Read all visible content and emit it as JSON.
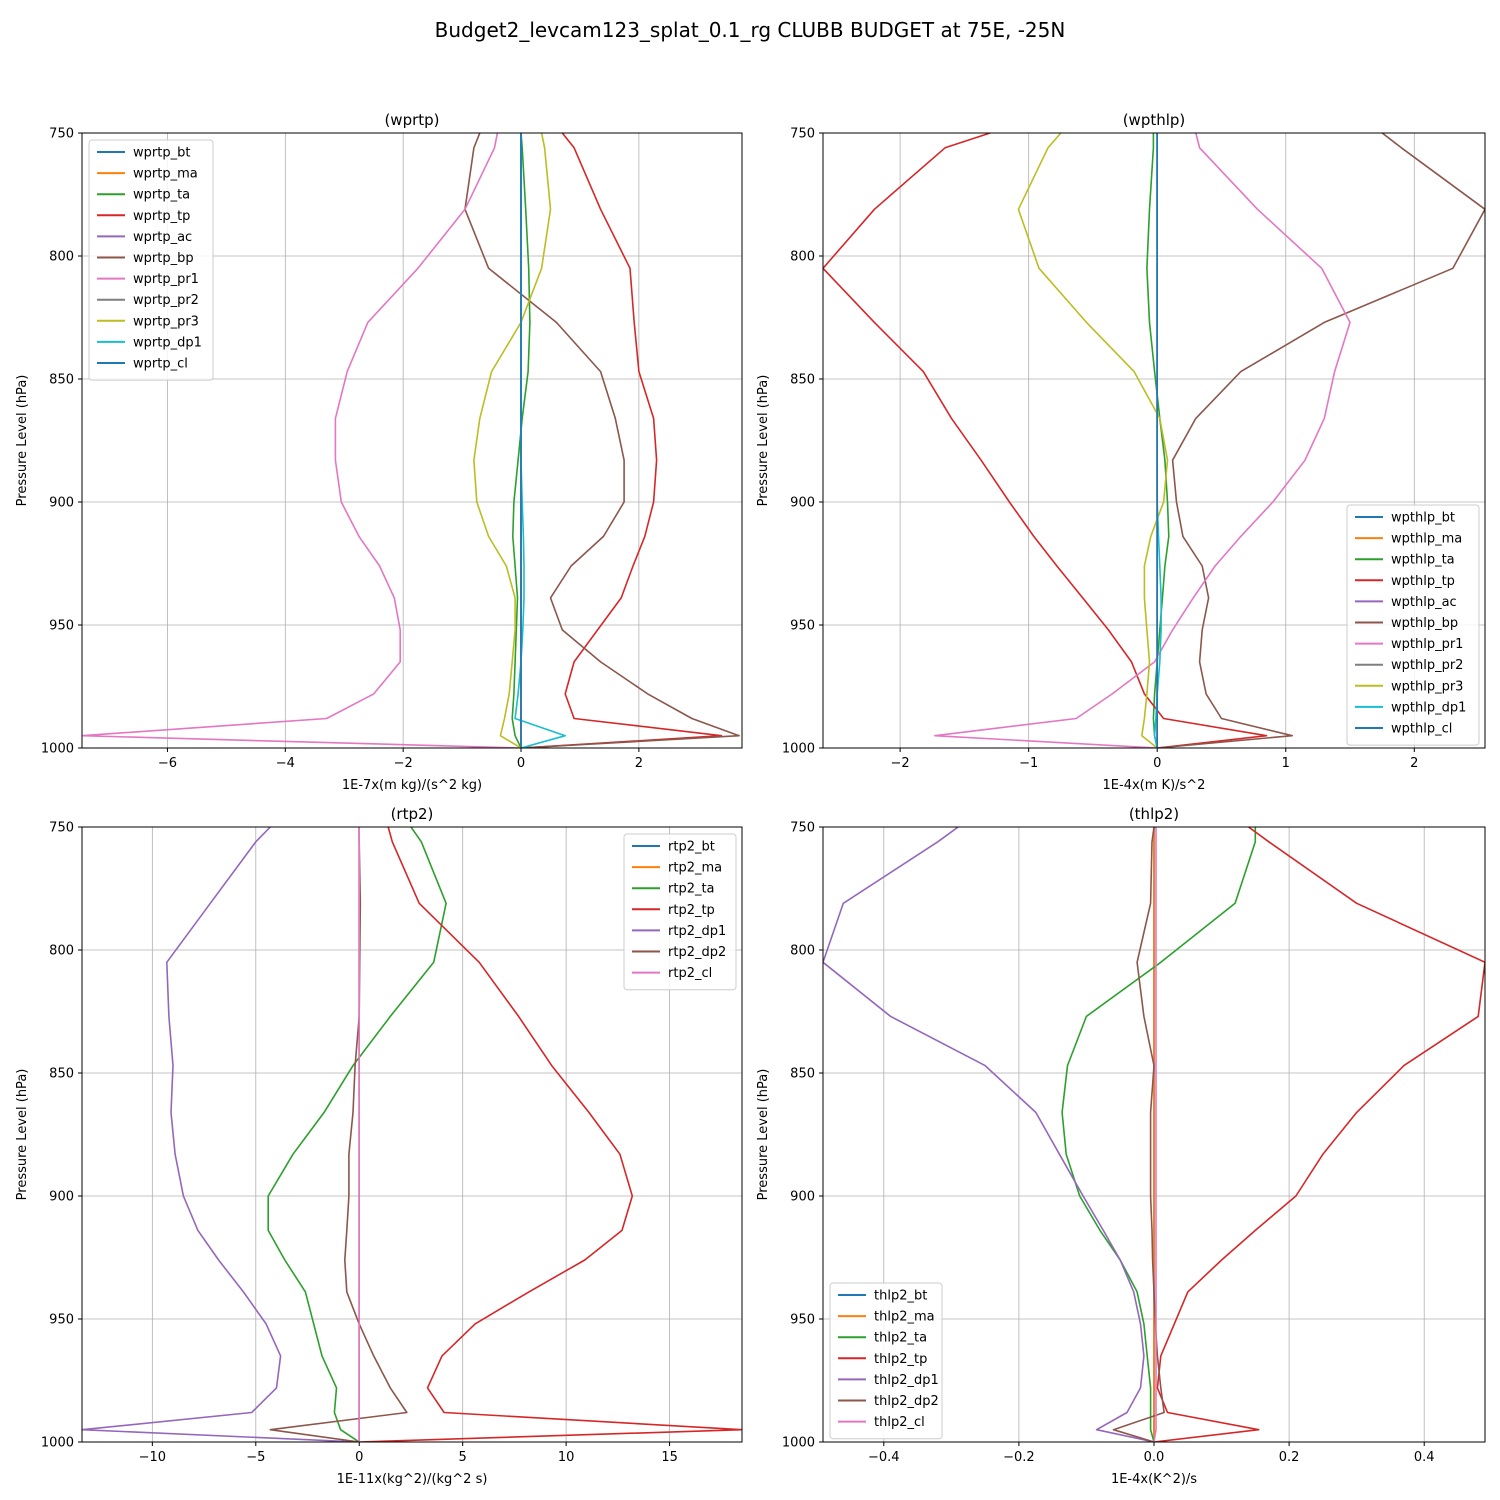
{
  "figure_title": "Budget2_levcam123_splat_0.1_rg CLUBB BUDGET at 75E, -25N",
  "colors": [
    "#1f77b4",
    "#ff7f0e",
    "#2ca02c",
    "#d62728",
    "#9467bd",
    "#8c564b",
    "#e377c2",
    "#7f7f7f",
    "#bcbd22",
    "#17becf",
    "#1f77b4"
  ],
  "chart_data": [
    {
      "type": "line",
      "title": "(wprtp)",
      "xlabel": "1E-7x(m kg)/(s^2 kg)",
      "ylabel": "Pressure Level (hPa)",
      "xlim": [
        -7.45,
        3.75
      ],
      "ylim": [
        1000,
        750
      ],
      "xticks": [
        -6,
        -4,
        -2,
        0,
        2
      ],
      "xtick_labels": [
        "−6",
        "−4",
        "−2",
        "0",
        "2"
      ],
      "yticks": [
        750,
        800,
        850,
        900,
        950,
        1000
      ],
      "grid": true,
      "legend": "upper-left",
      "levels": [
        750,
        756,
        781,
        805,
        827,
        847,
        866,
        883,
        900,
        914,
        926,
        939,
        952,
        965,
        978,
        988,
        995,
        1000
      ],
      "series": [
        {
          "name": "wprtp_bt",
          "values": [
            0,
            0,
            0,
            0,
            0,
            0,
            0,
            0,
            0,
            0,
            0,
            0,
            0,
            0,
            0,
            0,
            0,
            0
          ]
        },
        {
          "name": "wprtp_ma",
          "values": [
            0,
            0,
            0,
            0,
            0,
            0,
            0,
            0,
            0,
            0,
            0,
            0,
            0,
            0,
            0,
            0,
            0,
            0
          ]
        },
        {
          "name": "wprtp_ta",
          "values": [
            0,
            0.02,
            0.08,
            0.13,
            0.15,
            0.12,
            0.02,
            -0.05,
            -0.12,
            -0.14,
            -0.1,
            -0.06,
            -0.08,
            -0.1,
            -0.12,
            -0.15,
            -0.1,
            0
          ]
        },
        {
          "name": "wprtp_tp",
          "values": [
            0.7,
            0.9,
            1.35,
            1.85,
            1.92,
            2.0,
            2.25,
            2.3,
            2.25,
            2.1,
            1.9,
            1.7,
            1.3,
            0.9,
            0.75,
            0.9,
            3.4,
            0
          ]
        },
        {
          "name": "wprtp_ac",
          "values": [
            0,
            0,
            0,
            0,
            0,
            0,
            0,
            0,
            0,
            0,
            0,
            0,
            0,
            0,
            0,
            0,
            0,
            0
          ]
        },
        {
          "name": "wprtp_bp",
          "values": [
            -0.7,
            -0.8,
            -0.95,
            -0.55,
            0.6,
            1.35,
            1.6,
            1.75,
            1.75,
            1.4,
            0.85,
            0.5,
            0.7,
            1.35,
            2.15,
            2.9,
            3.7,
            0
          ]
        },
        {
          "name": "wprtp_pr1",
          "values": [
            -0.4,
            -0.45,
            -0.95,
            -1.75,
            -2.6,
            -2.95,
            -3.15,
            -3.15,
            -3.05,
            -2.75,
            -2.4,
            -2.15,
            -2.05,
            -2.05,
            -2.5,
            -3.3,
            -7.45,
            0
          ]
        },
        {
          "name": "wprtp_pr2",
          "values": [
            0,
            0,
            0,
            0,
            0,
            0,
            0,
            0,
            0,
            0,
            0,
            0,
            0,
            0,
            0,
            0,
            0,
            0
          ]
        },
        {
          "name": "wprtp_pr3",
          "values": [
            0.35,
            0.4,
            0.5,
            0.35,
            0.0,
            -0.5,
            -0.7,
            -0.8,
            -0.75,
            -0.55,
            -0.25,
            -0.1,
            -0.1,
            -0.15,
            -0.2,
            -0.28,
            -0.35,
            0
          ]
        },
        {
          "name": "wprtp_dp1",
          "values": [
            0,
            0,
            0,
            0,
            0,
            0,
            0,
            0,
            0.02,
            0.04,
            0.05,
            0.05,
            0.03,
            0.0,
            -0.05,
            -0.1,
            0.75,
            0
          ]
        },
        {
          "name": "wprtp_cl",
          "values": [
            0,
            0,
            0,
            0,
            0,
            0,
            0,
            0,
            0,
            0,
            0,
            0,
            0,
            0,
            0,
            0,
            0,
            0
          ]
        }
      ]
    },
    {
      "type": "line",
      "title": "(wpthlp)",
      "xlabel": "1E-4x(m K)/s^2",
      "ylabel": "Pressure Level (hPa)",
      "xlim": [
        -2.6,
        2.55
      ],
      "ylim": [
        1000,
        750
      ],
      "xticks": [
        -2,
        -1,
        0,
        1,
        2
      ],
      "xtick_labels": [
        "−2",
        "−1",
        "0",
        "1",
        "2"
      ],
      "yticks": [
        750,
        800,
        850,
        900,
        950,
        1000
      ],
      "grid": true,
      "legend": "lower-right",
      "levels": [
        750,
        756,
        781,
        805,
        827,
        847,
        866,
        883,
        900,
        914,
        926,
        939,
        952,
        965,
        978,
        988,
        995,
        1000
      ],
      "series": [
        {
          "name": "wpthlp_bt",
          "values": [
            0,
            0,
            0,
            0,
            0,
            0,
            0,
            0,
            0,
            0,
            0,
            0,
            0,
            0,
            0,
            0,
            0,
            0
          ]
        },
        {
          "name": "wpthlp_ma",
          "values": [
            0,
            0,
            0,
            0,
            0,
            0,
            0,
            0,
            0,
            0,
            0,
            0,
            0,
            0,
            0,
            0,
            0,
            0
          ]
        },
        {
          "name": "wpthlp_ta",
          "values": [
            -0.03,
            -0.03,
            -0.06,
            -0.08,
            -0.06,
            -0.02,
            0.02,
            0.06,
            0.08,
            0.09,
            0.06,
            0.04,
            0.02,
            0.0,
            -0.02,
            -0.03,
            -0.02,
            0
          ]
        },
        {
          "name": "wpthlp_tp",
          "values": [
            -1.3,
            -1.65,
            -2.2,
            -2.6,
            -2.2,
            -1.82,
            -1.6,
            -1.37,
            -1.15,
            -0.96,
            -0.78,
            -0.58,
            -0.38,
            -0.2,
            -0.1,
            0.05,
            0.85,
            0
          ]
        },
        {
          "name": "wpthlp_ac",
          "values": [
            0,
            0,
            0,
            0,
            0,
            0,
            0,
            0,
            0,
            0,
            0,
            0,
            0,
            0,
            0,
            0,
            0,
            0
          ]
        },
        {
          "name": "wpthlp_bp",
          "values": [
            1.75,
            1.9,
            2.55,
            2.3,
            1.3,
            0.65,
            0.3,
            0.12,
            0.15,
            0.2,
            0.35,
            0.4,
            0.35,
            0.33,
            0.38,
            0.5,
            1.05,
            0
          ]
        },
        {
          "name": "wpthlp_pr1",
          "values": [
            0.3,
            0.33,
            0.78,
            1.28,
            1.5,
            1.38,
            1.3,
            1.15,
            0.9,
            0.65,
            0.45,
            0.28,
            0.12,
            -0.02,
            -0.35,
            -0.63,
            -1.73,
            0
          ]
        },
        {
          "name": "wpthlp_pr2",
          "values": [
            0,
            0,
            0,
            0,
            0,
            0,
            0,
            0,
            0,
            0,
            0,
            0,
            0,
            0,
            0,
            0,
            0,
            0
          ]
        },
        {
          "name": "wpthlp_pr3",
          "values": [
            -0.75,
            -0.85,
            -1.08,
            -0.92,
            -0.55,
            -0.18,
            0.02,
            0.08,
            0.05,
            -0.05,
            -0.1,
            -0.1,
            -0.08,
            -0.06,
            -0.08,
            -0.1,
            -0.12,
            0
          ]
        },
        {
          "name": "wpthlp_dp1",
          "values": [
            0,
            0,
            0,
            0,
            0,
            0,
            0,
            0,
            0,
            0.01,
            0.02,
            0.03,
            0.03,
            0.02,
            0.0,
            -0.01,
            -0.02,
            0
          ]
        },
        {
          "name": "wpthlp_cl",
          "values": [
            0,
            0,
            0,
            0,
            0,
            0,
            0,
            0,
            0,
            0,
            0,
            0,
            0,
            0,
            0,
            0,
            0,
            0
          ]
        }
      ]
    },
    {
      "type": "line",
      "title": "(rtp2)",
      "xlabel": "1E-11x(kg^2)/(kg^2 s)",
      "ylabel": "Pressure Level (hPa)",
      "xlim": [
        -13.4,
        18.5
      ],
      "ylim": [
        1000,
        750
      ],
      "xticks": [
        -10,
        -5,
        0,
        5,
        10,
        15
      ],
      "xtick_labels": [
        "−10",
        "−5",
        "0",
        "5",
        "10",
        "15"
      ],
      "yticks": [
        750,
        800,
        850,
        900,
        950,
        1000
      ],
      "grid": true,
      "legend": "upper-right",
      "levels": [
        750,
        756,
        781,
        805,
        827,
        847,
        866,
        883,
        900,
        914,
        926,
        939,
        952,
        965,
        978,
        988,
        995,
        1000
      ],
      "series": [
        {
          "name": "rtp2_bt",
          "values": [
            0,
            0,
            0,
            0,
            0,
            0,
            0,
            0,
            0,
            0,
            0,
            0,
            0,
            0,
            0,
            0,
            0,
            0
          ]
        },
        {
          "name": "rtp2_ma",
          "values": [
            0,
            0,
            0,
            0,
            0,
            0,
            0,
            0,
            0,
            0,
            0,
            0,
            0,
            0,
            0,
            0,
            0,
            0
          ]
        },
        {
          "name": "rtp2_ta",
          "values": [
            2.5,
            3.0,
            4.2,
            3.6,
            1.5,
            -0.3,
            -1.7,
            -3.2,
            -4.4,
            -4.4,
            -3.6,
            -2.6,
            -2.2,
            -1.8,
            -1.1,
            -1.2,
            -0.9,
            0
          ]
        },
        {
          "name": "rtp2_tp",
          "values": [
            1.4,
            1.6,
            2.9,
            5.8,
            7.7,
            9.3,
            11.1,
            12.6,
            13.2,
            12.7,
            10.9,
            8.2,
            5.6,
            4.0,
            3.3,
            4.1,
            18.5,
            0
          ]
        },
        {
          "name": "rtp2_dp1",
          "values": [
            -4.3,
            -5.0,
            -7.2,
            -9.3,
            -9.2,
            -9.0,
            -9.1,
            -8.9,
            -8.5,
            -7.8,
            -6.8,
            -5.6,
            -4.5,
            -3.8,
            -4.0,
            -5.2,
            -13.4,
            0
          ]
        },
        {
          "name": "rtp2_dp2",
          "values": [
            0,
            0,
            0.05,
            0.02,
            0,
            -0.2,
            -0.3,
            -0.5,
            -0.5,
            -0.6,
            -0.7,
            -0.6,
            0,
            0.7,
            1.5,
            2.3,
            -4.3,
            0
          ]
        },
        {
          "name": "rtp2_cl",
          "values": [
            0,
            0,
            0,
            0,
            0,
            0,
            0,
            0,
            0,
            0,
            0,
            0,
            0,
            0,
            0,
            0,
            0,
            0
          ]
        }
      ]
    },
    {
      "type": "line",
      "title": "(thlp2)",
      "xlabel": "1E-4x(K^2)/s",
      "ylabel": "Pressure Level (hPa)",
      "xlim": [
        -0.49,
        0.49
      ],
      "ylim": [
        1000,
        750
      ],
      "xticks": [
        -0.4,
        -0.2,
        0.0,
        0.2,
        0.4
      ],
      "xtick_labels": [
        "−0.4",
        "−0.2",
        "0.0",
        "0.2",
        "0.4"
      ],
      "yticks": [
        750,
        800,
        850,
        900,
        950,
        1000
      ],
      "grid": true,
      "legend": "lower-left",
      "levels": [
        750,
        756,
        781,
        805,
        827,
        847,
        866,
        883,
        900,
        914,
        926,
        939,
        952,
        965,
        978,
        988,
        995,
        1000
      ],
      "series": [
        {
          "name": "thlp2_bt",
          "values": [
            0,
            0,
            0,
            0,
            0,
            0,
            0,
            0,
            0,
            0,
            0,
            0,
            0,
            0,
            0,
            0,
            0,
            0
          ]
        },
        {
          "name": "thlp2_ma",
          "values": [
            0,
            0,
            0,
            0,
            0,
            0,
            0,
            0,
            0,
            0,
            0,
            0,
            0,
            0,
            0,
            0,
            0,
            0
          ]
        },
        {
          "name": "thlp2_ta",
          "values": [
            0.15,
            0.15,
            0.12,
            0.01,
            -0.1,
            -0.128,
            -0.136,
            -0.13,
            -0.11,
            -0.08,
            -0.05,
            -0.025,
            -0.015,
            -0.01,
            -0.005,
            -0.005,
            -0.005,
            0
          ]
        },
        {
          "name": "thlp2_tp",
          "values": [
            0.14,
            0.17,
            0.3,
            0.49,
            0.48,
            0.37,
            0.3,
            0.25,
            0.21,
            0.15,
            0.1,
            0.05,
            0.03,
            0.01,
            0.005,
            0.02,
            0.155,
            0
          ]
        },
        {
          "name": "thlp2_dp1",
          "values": [
            -0.29,
            -0.32,
            -0.46,
            -0.49,
            -0.39,
            -0.25,
            -0.175,
            -0.14,
            -0.105,
            -0.075,
            -0.05,
            -0.03,
            -0.02,
            -0.015,
            -0.02,
            -0.04,
            -0.085,
            0
          ]
        },
        {
          "name": "thlp2_dp2",
          "values": [
            0,
            -0.003,
            -0.005,
            -0.025,
            -0.015,
            0,
            -0.005,
            -0.005,
            -0.005,
            -0.003,
            -0.002,
            0.0,
            0.002,
            0.005,
            0.01,
            0.015,
            -0.06,
            0
          ]
        },
        {
          "name": "thlp2_cl",
          "values": [
            0.003,
            0.003,
            0.003,
            0.003,
            0.003,
            0.003,
            0.003,
            0.003,
            0.003,
            0.003,
            0.003,
            0.003,
            0.003,
            0.003,
            0.003,
            0.003,
            0.003,
            0
          ]
        }
      ]
    }
  ]
}
